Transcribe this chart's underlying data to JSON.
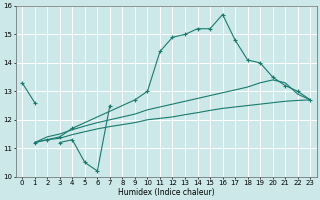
{
  "title": "",
  "xlabel": "Humidex (Indice chaleur)",
  "ylabel": "",
  "bg_color": "#cce8e8",
  "grid_color": "#ffffff",
  "line_color": "#1a7a6e",
  "xlim": [
    -0.5,
    23.5
  ],
  "ylim": [
    10,
    16
  ],
  "xticks": [
    0,
    1,
    2,
    3,
    4,
    5,
    6,
    7,
    8,
    9,
    10,
    11,
    12,
    13,
    14,
    15,
    16,
    17,
    18,
    19,
    20,
    21,
    22,
    23
  ],
  "yticks": [
    10,
    11,
    12,
    13,
    14,
    15,
    16
  ],
  "lines": [
    {
      "x": [
        0,
        1
      ],
      "y": [
        13.3,
        12.6
      ],
      "marker": true
    },
    {
      "x": [
        3,
        4,
        5,
        6,
        7
      ],
      "y": [
        11.2,
        11.3,
        10.5,
        10.2,
        12.5
      ],
      "marker": true
    },
    {
      "x": [
        1,
        2,
        3,
        4,
        9,
        10,
        11,
        12,
        13,
        14,
        15,
        16,
        17,
        18,
        19,
        20,
        21,
        22,
        23
      ],
      "y": [
        11.2,
        11.3,
        11.4,
        11.7,
        12.7,
        13.0,
        14.4,
        14.9,
        15.0,
        15.2,
        15.2,
        15.7,
        14.8,
        14.1,
        14.0,
        13.5,
        13.2,
        13.0,
        12.7
      ],
      "marker": true
    },
    {
      "x": [
        1,
        2,
        3,
        4,
        5,
        6,
        7,
        8,
        9,
        10,
        11,
        12,
        13,
        14,
        15,
        16,
        17,
        18,
        19,
        20,
        21,
        22,
        23
      ],
      "y": [
        11.2,
        11.4,
        11.5,
        11.65,
        11.78,
        11.9,
        12.0,
        12.1,
        12.2,
        12.35,
        12.45,
        12.55,
        12.65,
        12.75,
        12.85,
        12.95,
        13.05,
        13.15,
        13.3,
        13.4,
        13.3,
        12.9,
        12.7
      ],
      "marker": false
    },
    {
      "x": [
        1,
        2,
        3,
        4,
        5,
        6,
        7,
        8,
        9,
        10,
        11,
        12,
        13,
        14,
        15,
        16,
        17,
        18,
        19,
        20,
        21,
        22,
        23
      ],
      "y": [
        11.2,
        11.3,
        11.35,
        11.48,
        11.58,
        11.68,
        11.76,
        11.83,
        11.9,
        12.0,
        12.05,
        12.1,
        12.18,
        12.25,
        12.33,
        12.4,
        12.45,
        12.5,
        12.55,
        12.6,
        12.65,
        12.68,
        12.7
      ],
      "marker": false
    }
  ]
}
